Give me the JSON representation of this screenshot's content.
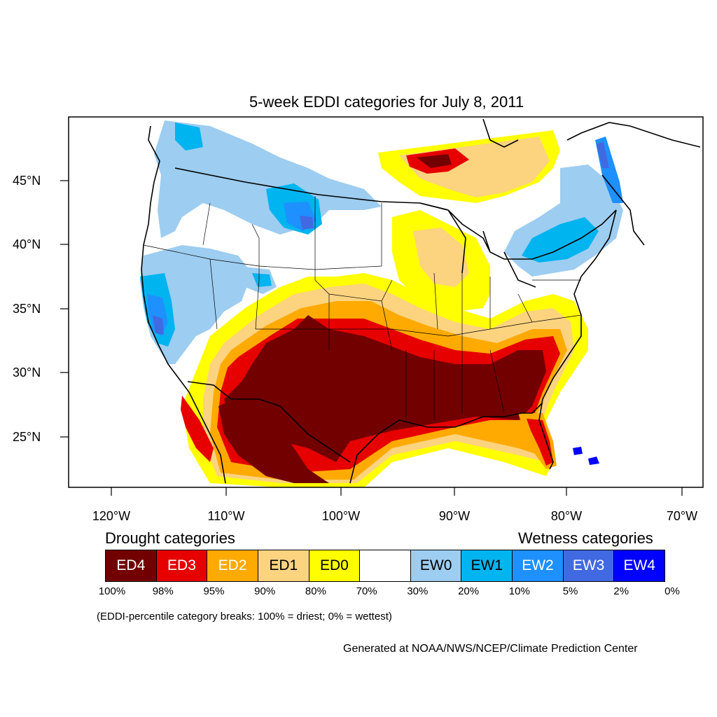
{
  "title": "5-week EDDI categories for July 8, 2011",
  "lat_labels": [
    "45°N",
    "40°N",
    "35°N",
    "30°N",
    "25°N"
  ],
  "lon_labels": [
    "120°W",
    "110°W",
    "100°W",
    "90°W",
    "80°W",
    "70°W"
  ],
  "legend": {
    "drought_heading": "Drought categories",
    "wetness_heading": "Wetness categories",
    "categories": [
      {
        "label": "ED4",
        "color": "#730000",
        "text_color": "#ffffff"
      },
      {
        "label": "ED3",
        "color": "#e60000",
        "text_color": "#ffffff"
      },
      {
        "label": "ED2",
        "color": "#ffaa00",
        "text_color": "#ffffff"
      },
      {
        "label": "ED1",
        "color": "#fcd37f",
        "text_color": "#000000"
      },
      {
        "label": "ED0",
        "color": "#ffff00",
        "text_color": "#000000"
      },
      {
        "label": "",
        "color": "#ffffff",
        "text_color": "#000000"
      },
      {
        "label": "EW0",
        "color": "#9dcdf0",
        "text_color": "#000000"
      },
      {
        "label": "EW1",
        "color": "#00b4f0",
        "text_color": "#000000"
      },
      {
        "label": "EW2",
        "color": "#1e90ff",
        "text_color": "#ffffff"
      },
      {
        "label": "EW3",
        "color": "#4169e1",
        "text_color": "#ffffff"
      },
      {
        "label": "EW4",
        "color": "#0000ff",
        "text_color": "#ffffff"
      }
    ],
    "breaks": [
      "100%",
      "98%",
      "95%",
      "90%",
      "80%",
      "70%",
      "30%",
      "20%",
      "10%",
      "5%",
      "2%",
      "0%"
    ],
    "note": "(EDDI-percentile category breaks: 100% = driest; 0% = wettest)"
  },
  "credit": "Generated at NOAA/NWS/NCEP/Climate Prediction Center"
}
